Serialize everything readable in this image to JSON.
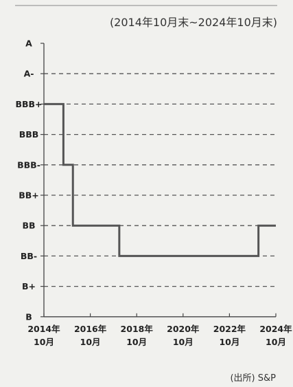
{
  "chart_data": {
    "type": "line",
    "period_note": "(2014年10月末~2024年10月末)",
    "source": "(出所) S&P",
    "y_categories": [
      "A",
      "A-",
      "BBB+",
      "BBB",
      "BBB-",
      "BB+",
      "BB",
      "BB-",
      "B+",
      "B"
    ],
    "x_ticks": [
      {
        "year": "2014年",
        "month": "10月",
        "value": 2014.83
      },
      {
        "year": "2016年",
        "month": "10月",
        "value": 2016.83
      },
      {
        "year": "2018年",
        "month": "10月",
        "value": 2018.83
      },
      {
        "year": "2020年",
        "month": "10月",
        "value": 2020.83
      },
      {
        "year": "2022年",
        "month": "10月",
        "value": 2022.83
      },
      {
        "year": "2024年",
        "month": "10月",
        "value": 2024.83
      }
    ],
    "xlim": [
      2014.83,
      2024.83
    ],
    "grid": "dashed horizontal",
    "series": [
      {
        "line_color": "#555555",
        "steps": [
          {
            "x": 2014.83,
            "y": "BBB+"
          },
          {
            "x": 2015.67,
            "y": "BBB-"
          },
          {
            "x": 2016.08,
            "y": "BB"
          },
          {
            "x": 2018.08,
            "y": "BB-"
          },
          {
            "x": 2024.08,
            "y": "BB"
          },
          {
            "x": 2024.83,
            "y": "BB"
          }
        ]
      }
    ]
  }
}
